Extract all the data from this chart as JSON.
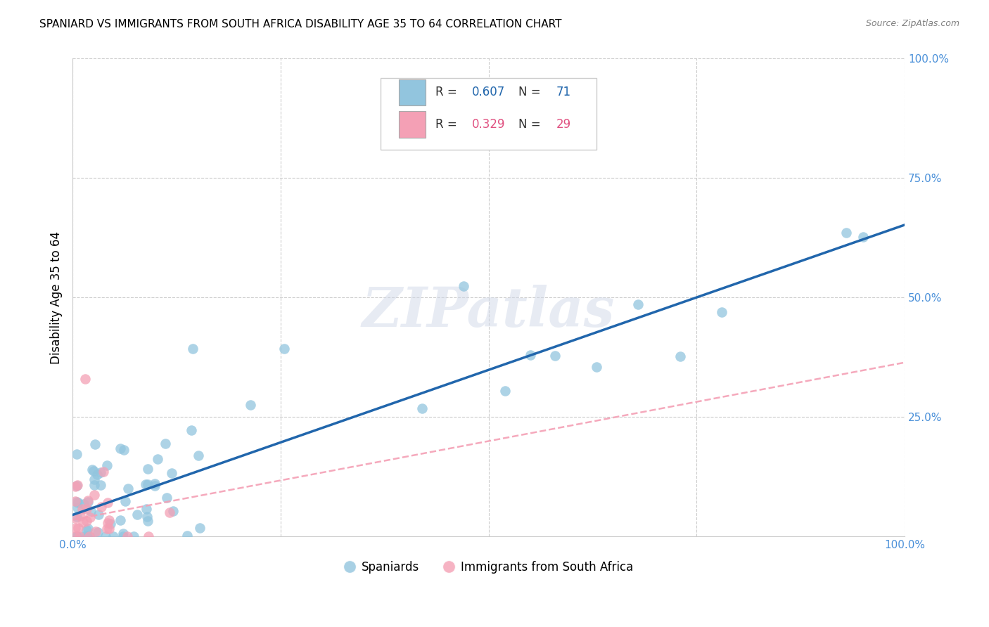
{
  "title": "SPANIARD VS IMMIGRANTS FROM SOUTH AFRICA DISABILITY AGE 35 TO 64 CORRELATION CHART",
  "source": "Source: ZipAtlas.com",
  "ylabel": "Disability Age 35 to 64",
  "xlim": [
    0,
    1
  ],
  "ylim": [
    0,
    1
  ],
  "xticks": [
    0.0,
    0.25,
    0.5,
    0.75,
    1.0
  ],
  "yticks": [
    0.0,
    0.25,
    0.5,
    0.75,
    1.0
  ],
  "xtick_labels": [
    "0.0%",
    "",
    "",
    "",
    "100.0%"
  ],
  "ytick_labels": [
    "",
    "25.0%",
    "50.0%",
    "75.0%",
    "100.0%"
  ],
  "blue_color": "#92c5de",
  "blue_line_color": "#2166ac",
  "pink_color": "#f4a0b5",
  "pink_line_color": "#f4a0b5",
  "legend_spaniards": "Spaniards",
  "legend_immigrants": "Immigrants from South Africa",
  "watermark": "ZIPatlas",
  "background_color": "#ffffff",
  "grid_color": "#cccccc",
  "blue_slope": 0.607,
  "blue_intercept": 0.045,
  "pink_slope": 0.329,
  "pink_intercept": 0.035,
  "blue_R_text": "R = 0.607",
  "blue_N_text": "N = 71",
  "pink_R_text": "R = 0.329",
  "pink_N_text": "N = 29",
  "blue_R_val": "0.607",
  "blue_N_val": "71",
  "pink_R_val": "0.329",
  "pink_N_val": "29"
}
